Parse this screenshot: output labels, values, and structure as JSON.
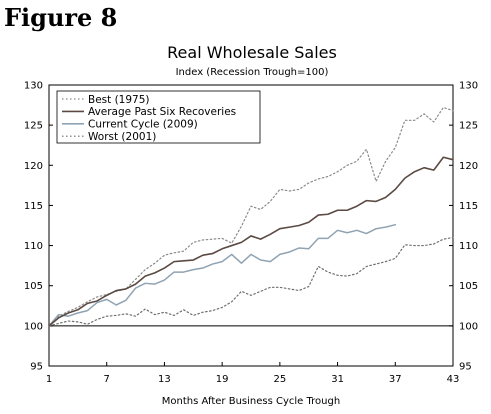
{
  "figure_label": "Figure 8",
  "colors": {
    "best": "#8a8a8a",
    "average": "#5b4a43",
    "current": "#8fa3b3",
    "worst": "#6e6e6e",
    "axis": "#000000"
  },
  "chart_data": {
    "type": "line",
    "title": "Real Wholesale Sales",
    "subtitle": "Index (Recession Trough=100)",
    "xlabel": "Months After Business Cycle Trough",
    "ylabel": "",
    "xlim": [
      1,
      43
    ],
    "ylim": [
      95,
      130
    ],
    "x_ticks": [
      1,
      7,
      13,
      19,
      25,
      31,
      37,
      43
    ],
    "y_ticks": [
      95,
      100,
      105,
      110,
      115,
      120,
      125,
      130
    ],
    "y_ticks_right": true,
    "baseline": 100,
    "grid": false,
    "legend_position": "top-left",
    "series": [
      {
        "name": "Best (1975)",
        "style": "dotted",
        "color_key": "best",
        "values": [
          100,
          101.2,
          101.8,
          102.3,
          103.0,
          103.6,
          103.9,
          104.3,
          104.6,
          105.8,
          107.0,
          107.8,
          108.8,
          109.1,
          109.3,
          110.4,
          110.7,
          110.8,
          110.9,
          110.3,
          112.4,
          114.9,
          114.5,
          115.5,
          117.0,
          116.8,
          117.0,
          117.8,
          118.3,
          118.6,
          119.2,
          120.0,
          120.5,
          122.0,
          118.0,
          120.5,
          122.2,
          125.6,
          125.6,
          126.4,
          125.4,
          127.2,
          126.8
        ]
      },
      {
        "name": "Average Past Six Recoveries",
        "style": "solid",
        "color_key": "average",
        "values": [
          100,
          101.0,
          101.6,
          102.0,
          102.8,
          103.1,
          103.8,
          104.4,
          104.6,
          105.2,
          106.2,
          106.6,
          107.2,
          108.0,
          108.1,
          108.2,
          108.8,
          109.0,
          109.6,
          110.0,
          110.4,
          111.2,
          110.8,
          111.4,
          112.1,
          112.3,
          112.5,
          112.9,
          113.8,
          113.9,
          114.4,
          114.4,
          114.9,
          115.6,
          115.5,
          116.0,
          117.0,
          118.4,
          119.2,
          119.7,
          119.4,
          121.0,
          120.7
        ]
      },
      {
        "name": "Current Cycle (2009)",
        "style": "solid",
        "color_key": "current",
        "values": [
          100,
          101.4,
          101.2,
          101.6,
          101.9,
          102.9,
          103.3,
          102.6,
          103.2,
          104.7,
          105.3,
          105.2,
          105.7,
          106.7,
          106.7,
          107.0,
          107.2,
          107.7,
          108.0,
          108.9,
          107.8,
          108.9,
          108.2,
          108.0,
          108.9,
          109.2,
          109.7,
          109.6,
          110.9,
          110.9,
          111.9,
          111.6,
          111.9,
          111.5,
          112.1,
          112.3,
          112.6
        ]
      },
      {
        "name": "Worst (2001)",
        "style": "dotted",
        "color_key": "worst",
        "values": [
          100,
          100.3,
          100.6,
          100.5,
          100.2,
          100.8,
          101.2,
          101.3,
          101.5,
          101.2,
          102.1,
          101.4,
          101.7,
          101.3,
          102.0,
          101.3,
          101.7,
          101.9,
          102.3,
          103.0,
          104.3,
          103.8,
          104.3,
          104.8,
          104.8,
          104.6,
          104.4,
          104.9,
          107.4,
          106.7,
          106.3,
          106.2,
          106.5,
          107.4,
          107.7,
          108.0,
          108.4,
          110.1,
          110.0,
          110.0,
          110.2,
          110.8,
          111.0
        ]
      }
    ]
  }
}
